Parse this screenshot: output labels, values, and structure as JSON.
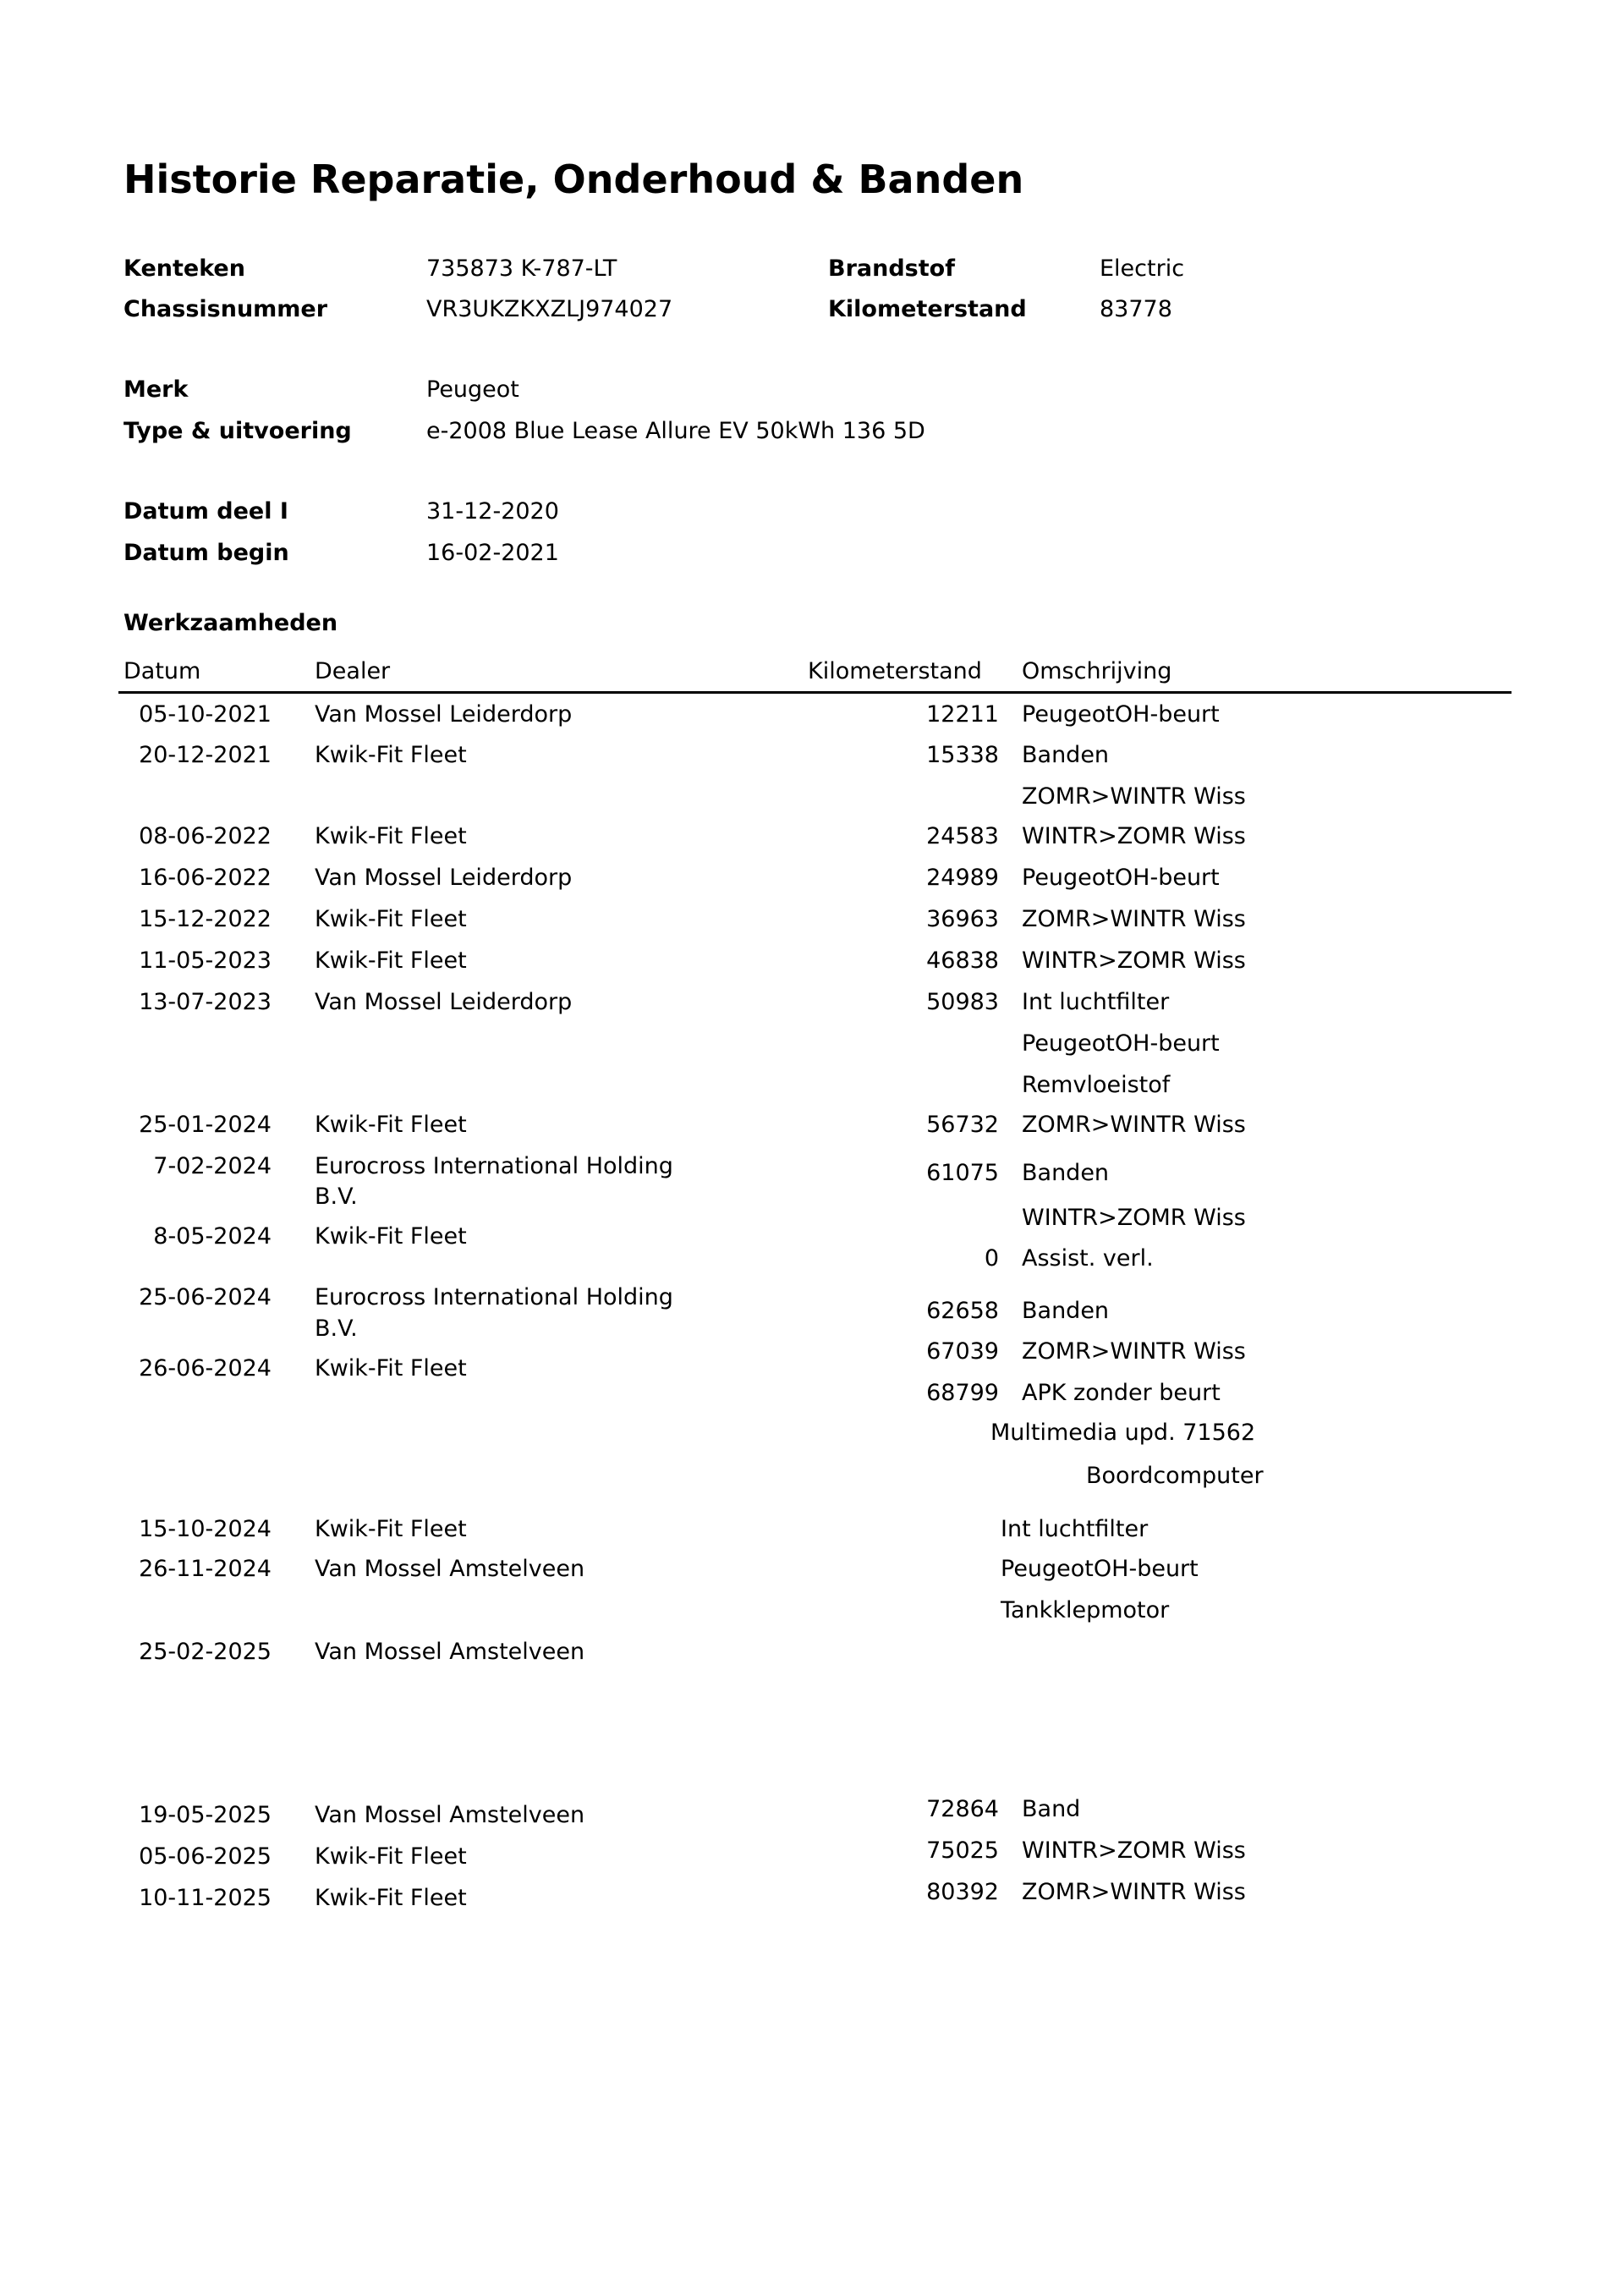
{
  "title": "Historie Reparatie, Onderhoud & Banden",
  "vehicle": {
    "kenteken_label": "Kenteken",
    "kenteken": "735873 K-787-LT",
    "chassis_label": "Chassisnummer",
    "chassis": "VR3UKZKXZLJ974027",
    "brandstof_label": "Brandstof",
    "brandstof": "Electric",
    "km_label": "Kilometerstand",
    "km": "83778",
    "merk_label": "Merk",
    "merk": "Peugeot",
    "type_label": "Type & uitvoering",
    "type": "e-2008 Blue Lease Allure EV 50kWh 136 5D",
    "datum_deel_label": "Datum deel I",
    "datum_deel": "31-12-2020",
    "datum_begin_label": "Datum begin",
    "datum_begin": "16-02-2021"
  },
  "work": {
    "section_title": "Werkzaamheden",
    "headers": {
      "date": "Datum",
      "dealer": "Dealer",
      "km": "Kilometerstand",
      "desc": "Omschrijving"
    },
    "rows": [
      {
        "date": "05-10-2021",
        "dealer": "Van Mossel Leiderdorp"
      },
      {
        "date": "20-12-2021",
        "dealer": "Kwik-Fit Fleet"
      },
      {
        "date": "08-06-2022",
        "dealer": "Kwik-Fit Fleet"
      },
      {
        "date": "16-06-2022",
        "dealer": "Van Mossel Leiderdorp"
      },
      {
        "date": "15-12-2022",
        "dealer": "Kwik-Fit Fleet"
      },
      {
        "date": "11-05-2023",
        "dealer": "Kwik-Fit Fleet"
      },
      {
        "date": "13-07-2023",
        "dealer": "Van Mossel Leiderdorp"
      },
      {
        "date": "25-01-2024",
        "dealer": "Kwik-Fit Fleet"
      },
      {
        "date": "7-02-2024",
        "dealer": "Eurocross International Holding",
        "dealer2": "B.V."
      },
      {
        "date": "8-05-2024",
        "dealer": "Kwik-Fit Fleet"
      },
      {
        "date": "25-06-2024",
        "dealer": "Eurocross International Holding",
        "dealer2": "B.V."
      },
      {
        "date": "26-06-2024",
        "dealer": "Kwik-Fit Fleet"
      },
      {
        "date": "15-10-2024",
        "dealer": "Kwik-Fit Fleet"
      },
      {
        "date": "26-11-2024",
        "dealer": "Van Mossel Amstelveen"
      },
      {
        "date": "25-02-2025",
        "dealer": "Van Mossel Amstelveen"
      },
      {
        "date": "19-05-2025",
        "dealer": "Van Mossel Amstelveen"
      },
      {
        "date": "05-06-2025",
        "dealer": "Kwik-Fit Fleet"
      },
      {
        "date": "10-11-2025",
        "dealer": "Kwik-Fit Fleet"
      }
    ],
    "lines": [
      {
        "km": "12211",
        "desc": "PeugeotOH-beurt"
      },
      {
        "km": "15338",
        "desc": "Banden"
      },
      {
        "km": "",
        "desc": "ZOMR>WINTR Wiss"
      },
      {
        "km": "24583",
        "desc": "WINTR>ZOMR Wiss"
      },
      {
        "km": "24989",
        "desc": "PeugeotOH-beurt"
      },
      {
        "km": "36963",
        "desc": "ZOMR>WINTR Wiss"
      },
      {
        "km": "46838",
        "desc": "WINTR>ZOMR Wiss"
      },
      {
        "km": "50983",
        "desc": "Int luchtfilter"
      },
      {
        "km": "",
        "desc": "PeugeotOH-beurt"
      },
      {
        "km": "",
        "desc": "Remvloeistof"
      },
      {
        "km": "56732",
        "desc": "ZOMR>WINTR Wiss"
      },
      {
        "km": "61075",
        "desc": "Banden"
      },
      {
        "km": "",
        "desc": "WINTR>ZOMR Wiss"
      },
      {
        "km": "0",
        "desc": "Assist. verl."
      },
      {
        "km": "62658",
        "desc": "Banden"
      },
      {
        "km": "67039",
        "desc": "ZOMR>WINTR Wiss"
      },
      {
        "km": "68799",
        "desc": "APK zonder beurt"
      },
      {
        "km": "",
        "desc": "Multimedia upd. 71562"
      },
      {
        "km": "",
        "desc": "Boordcomputer"
      },
      {
        "km": "",
        "desc": "Int luchtfilter"
      },
      {
        "km": "",
        "desc": "PeugeotOH-beurt"
      },
      {
        "km": "",
        "desc": "Tankklepmotor"
      },
      {
        "km": "72864",
        "desc": "Band"
      },
      {
        "km": "75025",
        "desc": "WINTR>ZOMR Wiss"
      },
      {
        "km": "80392",
        "desc": "ZOMR>WINTR Wiss"
      }
    ]
  }
}
